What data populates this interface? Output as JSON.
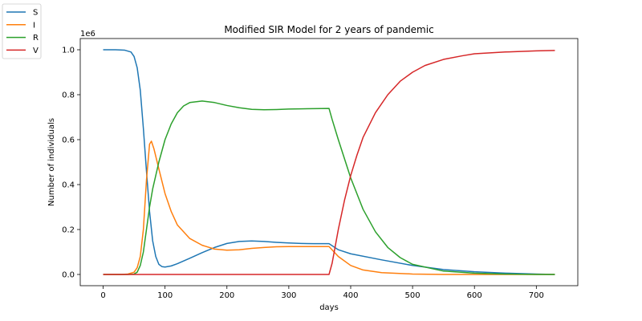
{
  "chart_data": {
    "type": "line",
    "title": "Modified SIR Model for 2 years of pandemic",
    "xlabel": "days",
    "ylabel": "Number of individuals",
    "y_offset_text": "1e6",
    "xlim": [
      -37,
      767
    ],
    "ylim": [
      -0.05,
      1.05
    ],
    "x_ticks": [
      0,
      100,
      200,
      300,
      400,
      500,
      600,
      700
    ],
    "y_ticks": [
      0.0,
      0.2,
      0.4,
      0.6,
      0.8,
      1.0
    ],
    "y_tick_labels": [
      "0.0",
      "0.2",
      "0.4",
      "0.6",
      "0.8",
      "1.0"
    ],
    "grid": false,
    "legend_position": "outside-top-left",
    "series": [
      {
        "name": "S",
        "color": "#1f77b4",
        "x": [
          0,
          20,
          35,
          45,
          50,
          55,
          60,
          65,
          70,
          75,
          80,
          85,
          90,
          95,
          100,
          110,
          120,
          140,
          160,
          180,
          200,
          220,
          240,
          260,
          280,
          300,
          320,
          340,
          365,
          380,
          400,
          450,
          500,
          550,
          600,
          650,
          700,
          730
        ],
        "y": [
          1.0,
          1.0,
          0.998,
          0.99,
          0.97,
          0.92,
          0.82,
          0.65,
          0.46,
          0.28,
          0.15,
          0.08,
          0.045,
          0.035,
          0.033,
          0.038,
          0.048,
          0.072,
          0.097,
          0.12,
          0.138,
          0.147,
          0.149,
          0.147,
          0.143,
          0.14,
          0.138,
          0.137,
          0.137,
          0.11,
          0.092,
          0.065,
          0.04,
          0.022,
          0.012,
          0.006,
          0.002,
          0.0
        ]
      },
      {
        "name": "I",
        "color": "#ff7f0e",
        "x": [
          0,
          30,
          40,
          50,
          55,
          60,
          65,
          70,
          75,
          78,
          82,
          90,
          100,
          110,
          120,
          140,
          160,
          180,
          200,
          220,
          240,
          260,
          280,
          300,
          320,
          340,
          365,
          380,
          400,
          420,
          450,
          500,
          550,
          600,
          700,
          730
        ],
        "y": [
          0.0,
          0.0,
          0.002,
          0.01,
          0.03,
          0.08,
          0.2,
          0.42,
          0.58,
          0.593,
          0.56,
          0.47,
          0.36,
          0.28,
          0.22,
          0.16,
          0.13,
          0.113,
          0.108,
          0.11,
          0.116,
          0.12,
          0.123,
          0.124,
          0.124,
          0.124,
          0.124,
          0.08,
          0.04,
          0.02,
          0.008,
          0.002,
          0.0,
          0.0,
          0.0,
          0.0
        ]
      },
      {
        "name": "R",
        "color": "#2ca02c",
        "x": [
          0,
          40,
          50,
          55,
          60,
          65,
          70,
          75,
          80,
          90,
          100,
          110,
          120,
          130,
          140,
          160,
          180,
          200,
          220,
          240,
          260,
          280,
          300,
          320,
          340,
          365,
          370,
          380,
          400,
          420,
          440,
          460,
          480,
          500,
          550,
          600,
          650,
          700,
          730
        ],
        "y": [
          0.0,
          0.0,
          0.002,
          0.01,
          0.04,
          0.1,
          0.2,
          0.3,
          0.38,
          0.5,
          0.6,
          0.67,
          0.72,
          0.75,
          0.765,
          0.772,
          0.765,
          0.752,
          0.742,
          0.735,
          0.733,
          0.734,
          0.736,
          0.737,
          0.738,
          0.739,
          0.69,
          0.6,
          0.43,
          0.29,
          0.19,
          0.12,
          0.075,
          0.045,
          0.015,
          0.006,
          0.002,
          0.0,
          0.0
        ]
      },
      {
        "name": "V",
        "color": "#d62728",
        "x": [
          0,
          365,
          370,
          380,
          390,
          400,
          410,
          420,
          440,
          460,
          480,
          500,
          520,
          550,
          580,
          600,
          650,
          700,
          730
        ],
        "y": [
          0.0,
          0.0,
          0.05,
          0.2,
          0.33,
          0.44,
          0.53,
          0.61,
          0.72,
          0.8,
          0.86,
          0.9,
          0.93,
          0.957,
          0.973,
          0.982,
          0.99,
          0.995,
          0.997
        ]
      }
    ]
  }
}
